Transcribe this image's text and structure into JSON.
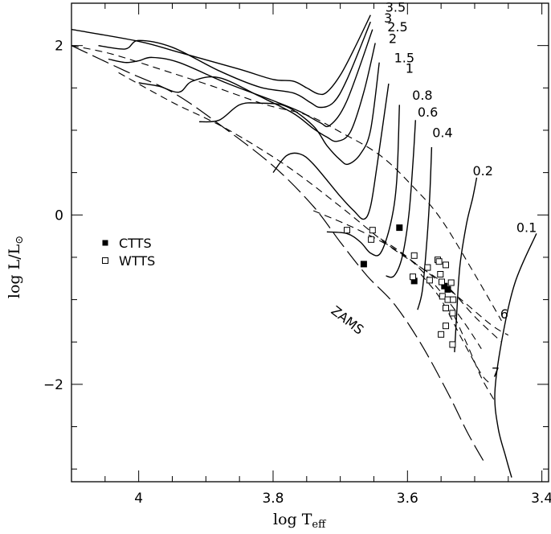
{
  "chart_data": {
    "type": "scatter",
    "title": "",
    "xlabel": "log T",
    "xlabel_sub": "eff",
    "ylabel": "log L/L",
    "ylabel_symbol": "⊙",
    "xlim": [
      4.1,
      3.39
    ],
    "ylim": [
      -3.15,
      2.5
    ],
    "x_ticks": [
      4,
      3.8,
      3.6,
      3.4
    ],
    "x_tick_labels": [
      "4",
      "3.8",
      "3.6",
      "3.4"
    ],
    "y_ticks": [
      2,
      0,
      -2
    ],
    "y_tick_labels": [
      "2",
      "0",
      "−2"
    ],
    "legend": {
      "placement": "left",
      "entries": [
        {
          "label": "CTTS",
          "marker": "filled-square"
        },
        {
          "label": "WTTS",
          "marker": "open-square"
        }
      ]
    },
    "track_labels": [
      {
        "text": "3.5",
        "x": 3.633,
        "y": 2.4
      },
      {
        "text": "3",
        "x": 3.635,
        "y": 2.27
      },
      {
        "text": "2.5",
        "x": 3.63,
        "y": 2.17
      },
      {
        "text": "2",
        "x": 3.628,
        "y": 2.03
      },
      {
        "text": "1.5",
        "x": 3.62,
        "y": 1.8
      },
      {
        "text": "1",
        "x": 3.603,
        "y": 1.68
      },
      {
        "text": "0.8",
        "x": 3.593,
        "y": 1.36
      },
      {
        "text": "0.6",
        "x": 3.585,
        "y": 1.16
      },
      {
        "text": "0.4",
        "x": 3.563,
        "y": 0.92
      },
      {
        "text": "0.2",
        "x": 3.503,
        "y": 0.47
      },
      {
        "text": "0.1",
        "x": 3.438,
        "y": -0.2
      }
    ],
    "isochrone_labels": [
      {
        "text": "6",
        "x": 3.462,
        "y": -1.22
      },
      {
        "text": "7",
        "x": 3.475,
        "y": -1.91
      }
    ],
    "zams_label": {
      "text": "ZAMS",
      "x": 3.715,
      "y": -1.15
    },
    "series": [
      {
        "name": "CTTS",
        "marker": "filled-square",
        "points": [
          {
            "x": 3.612,
            "y": -0.15
          },
          {
            "x": 3.665,
            "y": -0.58
          },
          {
            "x": 3.59,
            "y": -0.78
          },
          {
            "x": 3.54,
            "y": -0.88
          },
          {
            "x": 3.545,
            "y": -0.84
          }
        ]
      },
      {
        "name": "WTTS",
        "marker": "open-square",
        "points": [
          {
            "x": 3.69,
            "y": -0.18
          },
          {
            "x": 3.652,
            "y": -0.18
          },
          {
            "x": 3.654,
            "y": -0.29
          },
          {
            "x": 3.59,
            "y": -0.48
          },
          {
            "x": 3.57,
            "y": -0.62
          },
          {
            "x": 3.567,
            "y": -0.77
          },
          {
            "x": 3.592,
            "y": -0.73
          },
          {
            "x": 3.555,
            "y": -0.53
          },
          {
            "x": 3.553,
            "y": -0.55
          },
          {
            "x": 3.551,
            "y": -0.7
          },
          {
            "x": 3.549,
            "y": -0.79
          },
          {
            "x": 3.543,
            "y": -0.59
          },
          {
            "x": 3.535,
            "y": -0.8
          },
          {
            "x": 3.548,
            "y": -0.96
          },
          {
            "x": 3.54,
            "y": -1.0
          },
          {
            "x": 3.532,
            "y": -1.0
          },
          {
            "x": 3.543,
            "y": -1.1
          },
          {
            "x": 3.533,
            "y": -1.16
          },
          {
            "x": 3.543,
            "y": -1.31
          },
          {
            "x": 3.55,
            "y": -1.41
          },
          {
            "x": 3.533,
            "y": -1.53
          }
        ]
      }
    ],
    "tracks": [
      {
        "mass": "3.5",
        "points": [
          [
            4.1,
            2.19
          ],
          [
            4.0,
            2.05
          ],
          [
            3.94,
            1.92
          ],
          [
            3.85,
            1.72
          ],
          [
            3.8,
            1.6
          ],
          [
            3.77,
            1.58
          ],
          [
            3.75,
            1.5
          ],
          [
            3.733,
            1.43
          ],
          [
            3.72,
            1.45
          ],
          [
            3.7,
            1.65
          ],
          [
            3.68,
            1.95
          ],
          [
            3.655,
            2.36
          ]
        ]
      },
      {
        "mass": "3",
        "points": [
          [
            4.06,
            2.0
          ],
          [
            4.02,
            1.96
          ],
          [
            4.0,
            2.06
          ],
          [
            3.95,
            1.98
          ],
          [
            3.88,
            1.7
          ],
          [
            3.82,
            1.51
          ],
          [
            3.77,
            1.44
          ],
          [
            3.745,
            1.33
          ],
          [
            3.73,
            1.27
          ],
          [
            3.71,
            1.33
          ],
          [
            3.69,
            1.6
          ],
          [
            3.655,
            2.28
          ]
        ]
      },
      {
        "mass": "2.5",
        "points": [
          [
            4.045,
            1.84
          ],
          [
            4.02,
            1.8
          ],
          [
            4.0,
            1.82
          ],
          [
            3.98,
            1.86
          ],
          [
            3.94,
            1.8
          ],
          [
            3.87,
            1.56
          ],
          [
            3.8,
            1.35
          ],
          [
            3.76,
            1.22
          ],
          [
            3.73,
            1.09
          ],
          [
            3.715,
            1.06
          ],
          [
            3.69,
            1.35
          ],
          [
            3.652,
            2.19
          ]
        ]
      },
      {
        "mass": "2",
        "points": [
          [
            4.0,
            1.56
          ],
          [
            3.97,
            1.52
          ],
          [
            3.94,
            1.45
          ],
          [
            3.92,
            1.58
          ],
          [
            3.88,
            1.62
          ],
          [
            3.82,
            1.4
          ],
          [
            3.77,
            1.2
          ],
          [
            3.74,
            1.02
          ],
          [
            3.72,
            0.92
          ],
          [
            3.705,
            0.87
          ],
          [
            3.685,
            0.98
          ],
          [
            3.665,
            1.45
          ],
          [
            3.648,
            2.03
          ]
        ]
      },
      {
        "mass": "1.5",
        "points": [
          [
            3.91,
            1.1
          ],
          [
            3.88,
            1.12
          ],
          [
            3.85,
            1.3
          ],
          [
            3.82,
            1.32
          ],
          [
            3.78,
            1.28
          ],
          [
            3.74,
            1.05
          ],
          [
            3.72,
            0.82
          ],
          [
            3.7,
            0.65
          ],
          [
            3.688,
            0.6
          ],
          [
            3.67,
            0.72
          ],
          [
            3.655,
            1.0
          ],
          [
            3.642,
            1.8
          ]
        ]
      },
      {
        "mass": "1",
        "points": [
          [
            3.8,
            0.5
          ],
          [
            3.78,
            0.7
          ],
          [
            3.76,
            0.72
          ],
          [
            3.74,
            0.6
          ],
          [
            3.7,
            0.22
          ],
          [
            3.68,
            0.05
          ],
          [
            3.665,
            -0.05
          ],
          [
            3.655,
            0.1
          ],
          [
            3.645,
            0.6
          ],
          [
            3.628,
            1.55
          ]
        ]
      },
      {
        "mass": "0.8",
        "points": [
          [
            3.72,
            -0.2
          ],
          [
            3.69,
            -0.22
          ],
          [
            3.67,
            -0.32
          ],
          [
            3.655,
            -0.45
          ],
          [
            3.64,
            -0.45
          ],
          [
            3.625,
            -0.1
          ],
          [
            3.616,
            0.4
          ],
          [
            3.612,
            1.3
          ]
        ]
      },
      {
        "mass": "0.6",
        "points": [
          [
            3.632,
            -0.72
          ],
          [
            3.62,
            -0.72
          ],
          [
            3.608,
            -0.5
          ],
          [
            3.598,
            0.0
          ],
          [
            3.592,
            0.6
          ],
          [
            3.588,
            1.12
          ]
        ]
      },
      {
        "mass": "0.4",
        "points": [
          [
            3.585,
            -1.12
          ],
          [
            3.578,
            -0.9
          ],
          [
            3.572,
            -0.4
          ],
          [
            3.567,
            0.2
          ],
          [
            3.564,
            0.8
          ]
        ]
      },
      {
        "mass": "0.2",
        "points": [
          [
            3.53,
            -1.62
          ],
          [
            3.527,
            -1.2
          ],
          [
            3.522,
            -0.6
          ],
          [
            3.512,
            -0.1
          ],
          [
            3.503,
            0.2
          ],
          [
            3.497,
            0.44
          ]
        ]
      },
      {
        "mass": "0.1",
        "points": [
          [
            3.445,
            -3.1
          ],
          [
            3.454,
            -2.85
          ],
          [
            3.465,
            -2.52
          ],
          [
            3.47,
            -2.1
          ],
          [
            3.46,
            -1.5
          ],
          [
            3.44,
            -0.8
          ],
          [
            3.408,
            -0.22
          ]
        ]
      }
    ],
    "isochrones": [
      {
        "points": [
          [
            4.1,
            2.0
          ],
          [
            4.04,
            1.9
          ],
          [
            3.96,
            1.7
          ],
          [
            3.89,
            1.52
          ],
          [
            3.81,
            1.3
          ],
          [
            3.75,
            1.18
          ],
          [
            3.7,
            0.98
          ],
          [
            3.64,
            0.7
          ],
          [
            3.59,
            0.32
          ],
          [
            3.55,
            -0.05
          ],
          [
            3.5,
            -0.7
          ],
          [
            3.46,
            -1.25
          ]
        ]
      },
      {
        "points": [
          [
            4.03,
            1.68
          ],
          [
            3.95,
            1.33
          ],
          [
            3.87,
            1.02
          ],
          [
            3.78,
            0.58
          ],
          [
            3.7,
            0.1
          ],
          [
            3.63,
            -0.35
          ],
          [
            3.58,
            -0.62
          ],
          [
            3.54,
            -0.85
          ],
          [
            3.5,
            -1.2
          ],
          [
            3.46,
            -1.5
          ]
        ]
      },
      {
        "points": [
          [
            3.74,
            0.05
          ],
          [
            3.68,
            -0.15
          ],
          [
            3.62,
            -0.4
          ],
          [
            3.57,
            -0.68
          ],
          [
            3.52,
            -1.0
          ],
          [
            3.475,
            -1.3
          ],
          [
            3.45,
            -1.42
          ]
        ]
      },
      {
        "points": [
          [
            3.64,
            -0.28
          ],
          [
            3.6,
            -0.5
          ],
          [
            3.56,
            -0.82
          ],
          [
            3.52,
            -1.22
          ],
          [
            3.49,
            -1.58
          ]
        ]
      },
      {
        "points": [
          [
            3.58,
            -0.7
          ],
          [
            3.55,
            -1.0
          ],
          [
            3.52,
            -1.45
          ],
          [
            3.49,
            -1.88
          ],
          [
            3.475,
            -2.0
          ]
        ]
      },
      {
        "points": [
          [
            3.53,
            -1.2
          ],
          [
            3.51,
            -1.55
          ],
          [
            3.49,
            -1.92
          ],
          [
            3.47,
            -2.2
          ]
        ]
      }
    ],
    "zams": {
      "points": [
        [
          4.1,
          2.0
        ],
        [
          4.02,
          1.7
        ],
        [
          3.95,
          1.45
        ],
        [
          3.88,
          1.07
        ],
        [
          3.8,
          0.58
        ],
        [
          3.74,
          0.1
        ],
        [
          3.7,
          -0.32
        ],
        [
          3.66,
          -0.72
        ],
        [
          3.62,
          -1.05
        ],
        [
          3.58,
          -1.52
        ],
        [
          3.54,
          -2.1
        ],
        [
          3.51,
          -2.58
        ],
        [
          3.485,
          -2.93
        ]
      ]
    }
  }
}
